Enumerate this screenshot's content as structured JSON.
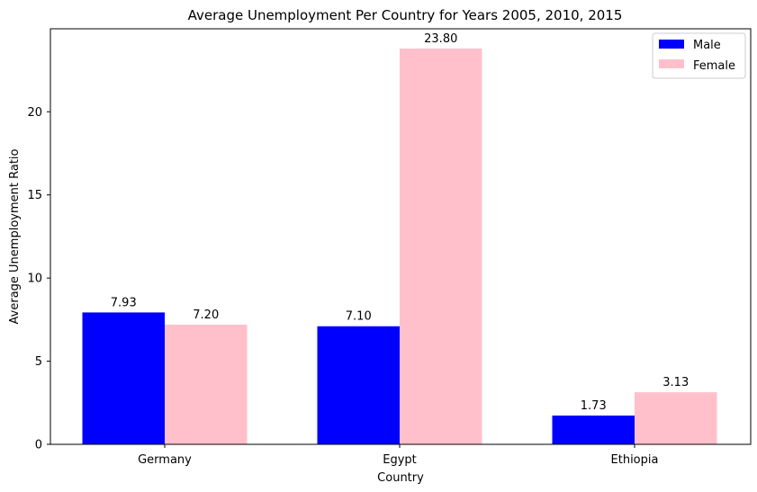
{
  "chart_data": {
    "type": "bar",
    "title": "Average Unemployment Per Country for Years 2005, 2010, 2015",
    "xlabel": "Country",
    "ylabel": "Average Unemployment Ratio",
    "categories": [
      "Germany",
      "Egypt",
      "Ethiopia"
    ],
    "series": [
      {
        "name": "Male",
        "color": "#0000ff",
        "values": [
          7.93,
          7.1,
          1.73
        ],
        "labels": [
          "7.93",
          "7.10",
          "1.73"
        ]
      },
      {
        "name": "Female",
        "color": "#ffc0cb",
        "values": [
          7.2,
          23.8,
          3.13
        ],
        "labels": [
          "7.20",
          "23.80",
          "3.13"
        ]
      }
    ],
    "ylim": [
      0,
      24.99
    ],
    "yticks": [
      0,
      5,
      10,
      15,
      20
    ],
    "ytick_labels": [
      "0",
      "5",
      "10",
      "15",
      "20"
    ],
    "grid": false,
    "legend_position": "top-right"
  }
}
